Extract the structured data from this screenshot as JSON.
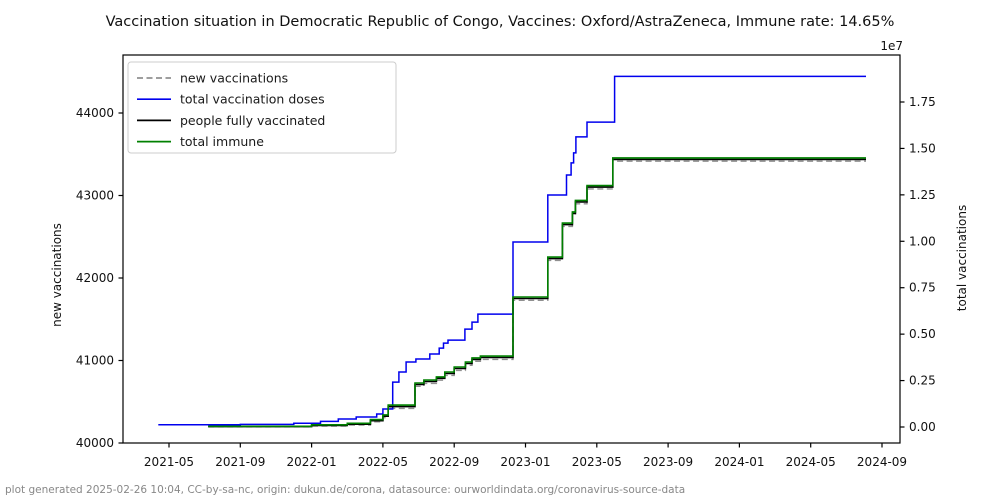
{
  "footer": {
    "text": "plot generated 2025-02-26 10:04, CC-by-sa-nc, origin: dukun.de/corona, datasource: ourworldindata.org/coronavirus-source-data"
  },
  "chart_data": {
    "type": "line",
    "title": "Vaccination situation in Democratic Republic of Congo, Vaccines: Oxford/AstraZeneca, Immune rate: 14.65%",
    "xlabel": "",
    "ylabel_left": "new vaccinations",
    "ylabel_right": "total vaccinations",
    "right_axis_multiplier": "1e7",
    "immune_rate": "14.65%",
    "grid": false,
    "legend_position": "upper left",
    "x_unit": "months since 2021-01-01",
    "y_unit_right": "1e7 total vaccinations",
    "x_ticks": [
      {
        "m": 4,
        "label": "2021-05"
      },
      {
        "m": 8,
        "label": "2021-09"
      },
      {
        "m": 12,
        "label": "2022-01"
      },
      {
        "m": 16,
        "label": "2022-05"
      },
      {
        "m": 20,
        "label": "2022-09"
      },
      {
        "m": 24,
        "label": "2023-01"
      },
      {
        "m": 28,
        "label": "2023-05"
      },
      {
        "m": 32,
        "label": "2023-09"
      },
      {
        "m": 36,
        "label": "2024-01"
      },
      {
        "m": 40,
        "label": "2024-05"
      },
      {
        "m": 44,
        "label": "2024-09"
      }
    ],
    "left_ticks": [
      {
        "value": 40000,
        "label": "40000"
      },
      {
        "value": 41000,
        "label": "41000"
      },
      {
        "value": 42000,
        "label": "42000"
      },
      {
        "value": 43000,
        "label": "43000"
      },
      {
        "value": 44000,
        "label": "44000"
      }
    ],
    "right_ticks": [
      {
        "value": 0.0,
        "label": "0.00"
      },
      {
        "value": 0.25,
        "label": "0.25"
      },
      {
        "value": 0.5,
        "label": "0.50"
      },
      {
        "value": 0.75,
        "label": "0.75"
      },
      {
        "value": 1.0,
        "label": "1.00"
      },
      {
        "value": 1.25,
        "label": "1.25"
      },
      {
        "value": 1.5,
        "label": "1.50"
      },
      {
        "value": 1.75,
        "label": "1.75"
      }
    ],
    "x_range_months": [
      1.4,
      45.2
    ],
    "left_ylim": [
      40000,
      44700
    ],
    "right_ylim_e7": [
      -0.09,
      2.0
    ],
    "final_values_e7": {
      "total_vaccination_doses": 1.888,
      "people_fully_vaccinated": 1.441,
      "total_immune": 1.449
    },
    "series": [
      {
        "name": "new vaccinations",
        "color": "#909090",
        "dash": true,
        "width": 1.4,
        "points": [
          [
            6.2,
            0.001
          ],
          [
            12.0,
            0.005
          ],
          [
            14.0,
            0.01
          ],
          [
            15.3,
            0.028
          ],
          [
            16.0,
            0.05
          ],
          [
            16.3,
            0.1
          ],
          [
            17.8,
            0.219
          ],
          [
            18.3,
            0.235
          ],
          [
            19.0,
            0.252
          ],
          [
            19.47,
            0.278
          ],
          [
            20.0,
            0.305
          ],
          [
            20.63,
            0.332
          ],
          [
            21.0,
            0.354
          ],
          [
            21.47,
            0.364
          ],
          [
            23.3,
            0.682
          ],
          [
            25.25,
            0.897
          ],
          [
            26.07,
            1.08
          ],
          [
            26.63,
            1.14
          ],
          [
            26.8,
            1.202
          ],
          [
            27.45,
            1.282
          ],
          [
            28.9,
            1.431
          ],
          [
            43.1,
            1.431
          ]
        ]
      },
      {
        "name": "total vaccination doses",
        "color": "#0000ee",
        "dash": false,
        "width": 1.5,
        "points": [
          [
            3.4,
            0.012
          ],
          [
            8.0,
            0.014
          ],
          [
            11.0,
            0.02
          ],
          [
            12.5,
            0.03
          ],
          [
            13.5,
            0.043
          ],
          [
            14.5,
            0.054
          ],
          [
            15.65,
            0.07
          ],
          [
            16.0,
            0.097
          ],
          [
            16.55,
            0.242
          ],
          [
            16.9,
            0.296
          ],
          [
            17.3,
            0.35
          ],
          [
            17.85,
            0.366
          ],
          [
            18.63,
            0.393
          ],
          [
            19.16,
            0.425
          ],
          [
            19.4,
            0.452
          ],
          [
            19.65,
            0.468
          ],
          [
            20.6,
            0.527
          ],
          [
            21.0,
            0.565
          ],
          [
            21.33,
            0.608
          ],
          [
            23.3,
            0.996
          ],
          [
            25.25,
            1.249
          ],
          [
            26.3,
            1.357
          ],
          [
            26.56,
            1.422
          ],
          [
            26.7,
            1.476
          ],
          [
            26.83,
            1.562
          ],
          [
            27.45,
            1.642
          ],
          [
            29.0,
            1.888
          ],
          [
            43.1,
            1.888
          ]
        ]
      },
      {
        "name": "people fully vaccinated",
        "color": "#000000",
        "dash": false,
        "width": 1.6,
        "points": [
          [
            6.2,
            0.002
          ],
          [
            12.0,
            0.008
          ],
          [
            14.0,
            0.015
          ],
          [
            15.3,
            0.034
          ],
          [
            16.0,
            0.058
          ],
          [
            16.3,
            0.11
          ],
          [
            17.8,
            0.229
          ],
          [
            18.3,
            0.245
          ],
          [
            19.0,
            0.262
          ],
          [
            19.47,
            0.288
          ],
          [
            20.0,
            0.315
          ],
          [
            20.63,
            0.342
          ],
          [
            21.0,
            0.364
          ],
          [
            21.47,
            0.374
          ],
          [
            23.3,
            0.692
          ],
          [
            25.25,
            0.907
          ],
          [
            26.07,
            1.09
          ],
          [
            26.63,
            1.15
          ],
          [
            26.8,
            1.212
          ],
          [
            27.45,
            1.292
          ],
          [
            28.9,
            1.441
          ],
          [
            43.1,
            1.441
          ]
        ]
      },
      {
        "name": "total immune",
        "color": "#008000",
        "dash": false,
        "width": 1.6,
        "points": [
          [
            6.2,
            0.004
          ],
          [
            12.0,
            0.012
          ],
          [
            14.0,
            0.02
          ],
          [
            15.3,
            0.04
          ],
          [
            16.0,
            0.065
          ],
          [
            16.3,
            0.118
          ],
          [
            17.8,
            0.237
          ],
          [
            18.3,
            0.253
          ],
          [
            19.0,
            0.27
          ],
          [
            19.47,
            0.296
          ],
          [
            20.0,
            0.323
          ],
          [
            20.63,
            0.35
          ],
          [
            21.0,
            0.372
          ],
          [
            21.47,
            0.382
          ],
          [
            23.3,
            0.7
          ],
          [
            25.25,
            0.915
          ],
          [
            26.07,
            1.098
          ],
          [
            26.63,
            1.158
          ],
          [
            26.8,
            1.22
          ],
          [
            27.45,
            1.3
          ],
          [
            28.9,
            1.449
          ],
          [
            43.1,
            1.449
          ]
        ]
      }
    ]
  }
}
